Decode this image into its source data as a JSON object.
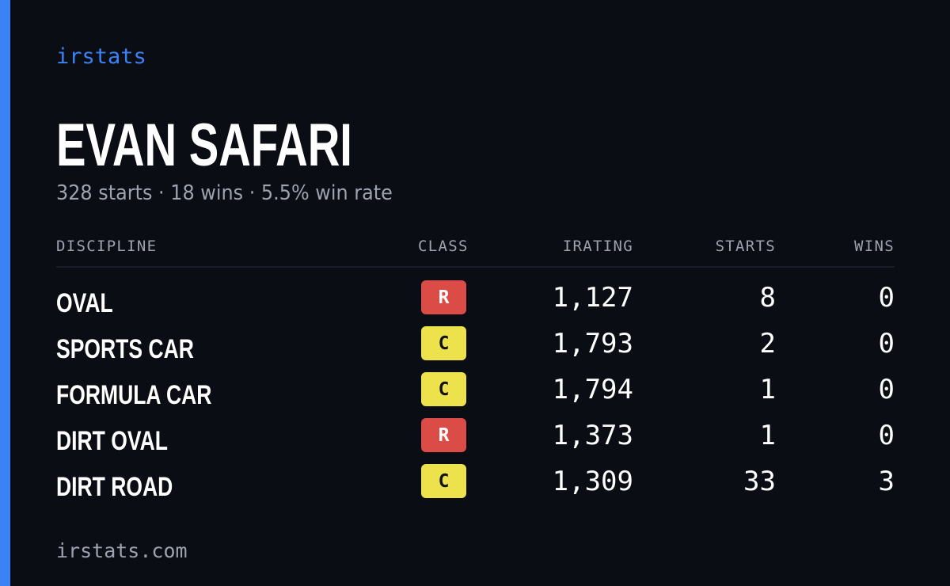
{
  "brand": "irstats",
  "driver": {
    "name": "EVAN SAFARI",
    "summary": "328 starts · 18 wins · 5.5% win rate"
  },
  "colors": {
    "background": "#0b0d14",
    "accent": "#3b82f6",
    "class_R": "#dc4c46",
    "class_C": "#ede14c",
    "muted_text": "#9ca3af"
  },
  "table": {
    "headers": {
      "discipline": "DISCIPLINE",
      "class": "CLASS",
      "irating": "IRATING",
      "starts": "STARTS",
      "wins": "WINS"
    },
    "rows": [
      {
        "discipline": "OVAL",
        "class": "R",
        "irating": "1,127",
        "starts": "8",
        "wins": "0"
      },
      {
        "discipline": "SPORTS CAR",
        "class": "C",
        "irating": "1,793",
        "starts": "2",
        "wins": "0"
      },
      {
        "discipline": "FORMULA CAR",
        "class": "C",
        "irating": "1,794",
        "starts": "1",
        "wins": "0"
      },
      {
        "discipline": "DIRT OVAL",
        "class": "R",
        "irating": "1,373",
        "starts": "1",
        "wins": "0"
      },
      {
        "discipline": "DIRT ROAD",
        "class": "C",
        "irating": "1,309",
        "starts": "33",
        "wins": "3"
      }
    ]
  },
  "footer": "irstats.com"
}
